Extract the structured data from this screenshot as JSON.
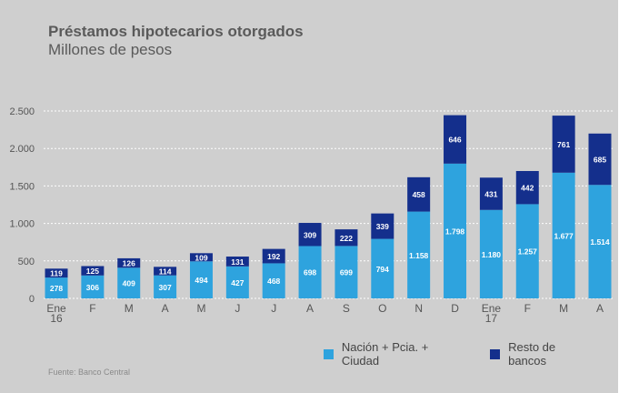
{
  "title": "Préstamos hipotecarios otorgados",
  "subtitle": "Millones de pesos",
  "source": "Fuente: Banco Central",
  "colors": {
    "background": "#cfcfcf",
    "series_1": "#2ea3de",
    "series_2": "#142f8c",
    "grid": "#ffffff",
    "axis_text": "#555555"
  },
  "chart_data": {
    "type": "bar",
    "stacked": true,
    "title": "Préstamos hipotecarios otorgados",
    "subtitle": "Millones de pesos",
    "xlabel": "",
    "ylabel": "",
    "ylim": [
      0,
      2500
    ],
    "yticks": [
      0,
      500,
      1000,
      1500,
      2000,
      2500
    ],
    "ytick_labels": [
      "0",
      "500",
      "1.000",
      "1.500",
      "2.000",
      "2.500"
    ],
    "grid": true,
    "legend_position": "bottom-right",
    "categories": [
      [
        "Ene",
        "16"
      ],
      [
        "F"
      ],
      [
        "M"
      ],
      [
        "A"
      ],
      [
        "M"
      ],
      [
        "J"
      ],
      [
        "J"
      ],
      [
        "A"
      ],
      [
        "S"
      ],
      [
        "O"
      ],
      [
        "N"
      ],
      [
        "D"
      ],
      [
        "Ene",
        "17"
      ],
      [
        "F"
      ],
      [
        "M"
      ],
      [
        "A"
      ]
    ],
    "series": [
      {
        "name": "Nación + Pcia. + Ciudad",
        "values": [
          278,
          306,
          409,
          307,
          494,
          427,
          468,
          698,
          699,
          794,
          1158,
          1798,
          1180,
          1257,
          1677,
          1514
        ],
        "labels": [
          "278",
          "306",
          "409",
          "307",
          "494",
          "427",
          "468",
          "698",
          "699",
          "794",
          "1.158",
          "1.798",
          "1.180",
          "1.257",
          "1.677",
          "1.514"
        ]
      },
      {
        "name": "Resto de bancos",
        "values": [
          119,
          125,
          126,
          114,
          109,
          131,
          192,
          309,
          222,
          339,
          458,
          646,
          431,
          442,
          761,
          685
        ],
        "labels": [
          "119",
          "125",
          "126",
          "114",
          "109",
          "131",
          "192",
          "309",
          "222",
          "339",
          "458",
          "646",
          "431",
          "442",
          "761",
          "685"
        ]
      }
    ]
  }
}
